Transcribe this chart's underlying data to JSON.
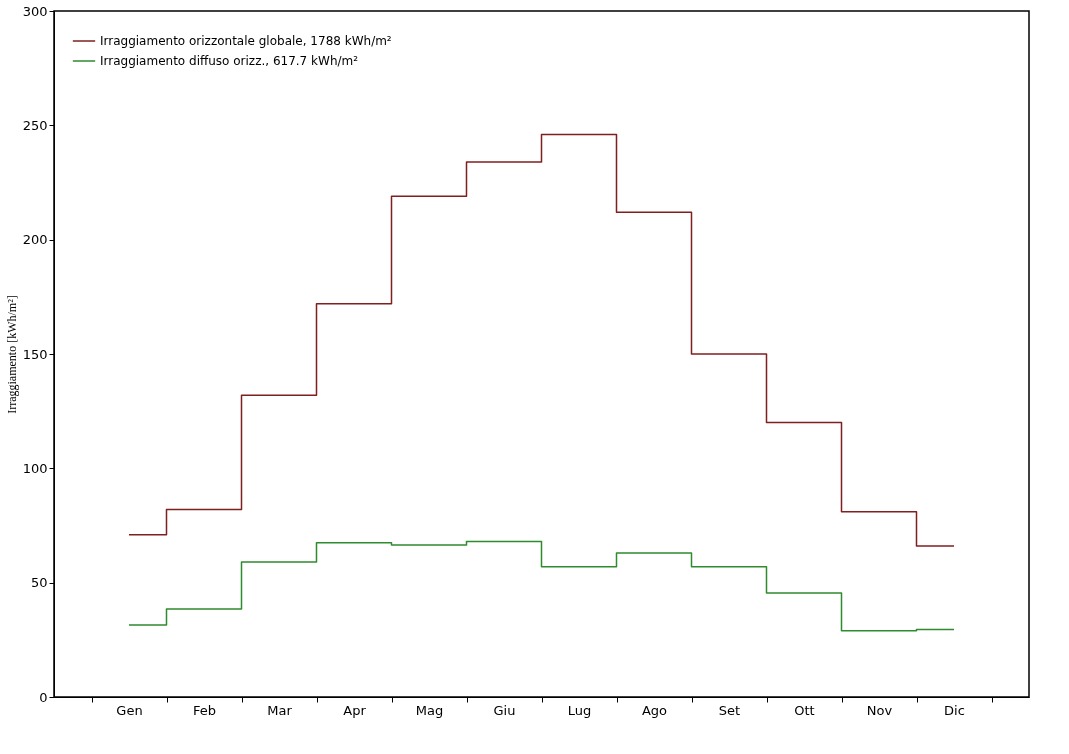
{
  "chart_data": {
    "type": "step",
    "ylabel": "Irraggiamento  [kWh/m²]",
    "categories": [
      "Gen",
      "Feb",
      "Mar",
      "Apr",
      "Mag",
      "Giu",
      "Lug",
      "Ago",
      "Set",
      "Ott",
      "Nov",
      "Dic"
    ],
    "series": [
      {
        "name": "Irraggiamento orizzontale globale,  1788 kWh/m²",
        "color": "#7f1f1f",
        "values": [
          71,
          82,
          132,
          172,
          219,
          234,
          246,
          212,
          150,
          120,
          81,
          66
        ]
      },
      {
        "name": "Irraggiamento diffuso orizz.,  617.7 kWh/m²",
        "color": "#2e8b2e",
        "values": [
          31.5,
          38.5,
          59,
          67.5,
          66.5,
          68,
          57,
          63,
          57,
          45.5,
          29,
          29.5
        ]
      }
    ],
    "ylim": [
      0,
      300
    ],
    "yticks": [
      0,
      50,
      100,
      150,
      200,
      250,
      300
    ],
    "grid": false,
    "legend": "top left"
  }
}
